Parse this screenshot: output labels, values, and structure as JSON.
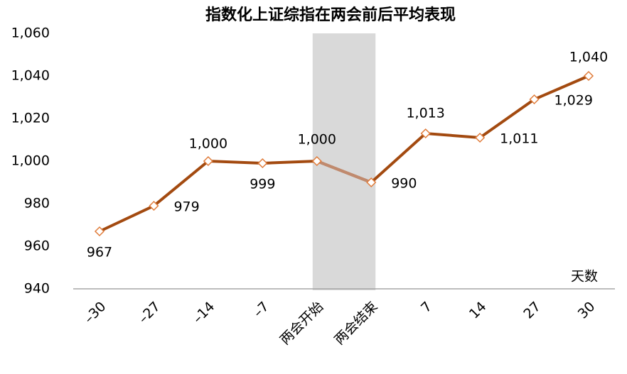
{
  "chart_data": {
    "type": "line",
    "title": "指数化上证综指在两会前后平均表现",
    "x_label": "天数",
    "categories": [
      "–30",
      "–27",
      "–14",
      "–7",
      "两会开始",
      "两会结束",
      "7",
      "14",
      "27",
      "30"
    ],
    "series": [
      {
        "name": "指数化上证综指",
        "color": "#a34a10",
        "marker_color": "#e07b39",
        "highlight_color": "#c08a6e",
        "values": [
          967,
          979,
          1000,
          999,
          1000,
          990,
          1013,
          1011,
          1029,
          1040
        ],
        "value_labels": [
          "967",
          "979",
          "1,000",
          "999",
          "1,000",
          "990",
          "1,013",
          "1,011",
          "1,029",
          "1,040"
        ]
      }
    ],
    "highlight": [
      4,
      5
    ],
    "highlight_color": "#d9d9d9",
    "ylim": [
      940,
      1060
    ],
    "yticks": [
      940,
      960,
      980,
      {
        "value": 1000,
        "label": "1,000"
      },
      {
        "value": 1020,
        "label": "1,020"
      },
      {
        "value": 1040,
        "label": "1,040"
      },
      {
        "value": 1060,
        "label": "1,060"
      }
    ]
  }
}
